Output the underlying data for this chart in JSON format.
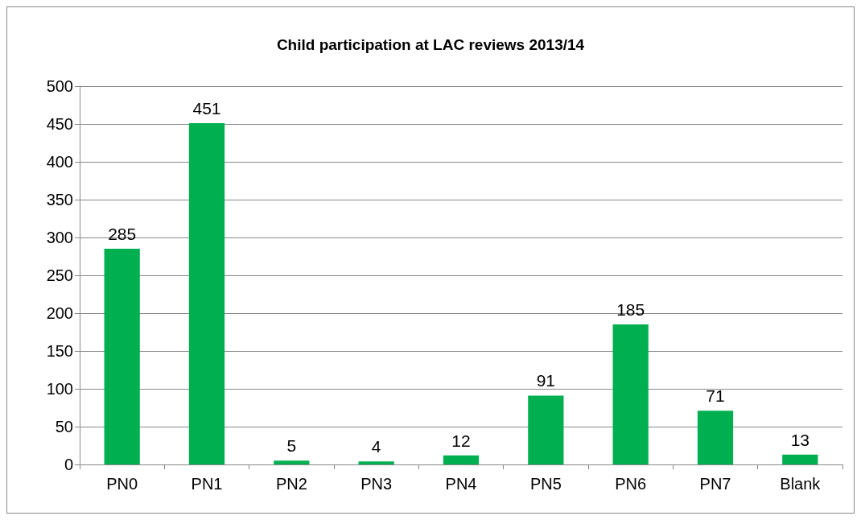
{
  "chart_data": {
    "type": "bar",
    "title": "Child participation at LAC reviews 2013/14",
    "categories": [
      "PN0",
      "PN1",
      "PN2",
      "PN3",
      "PN4",
      "PN5",
      "PN6",
      "PN7",
      "Blank"
    ],
    "values": [
      285,
      451,
      5,
      4,
      12,
      91,
      185,
      71,
      13
    ],
    "color": "#00b050",
    "ylim": [
      0,
      500
    ],
    "yticks": [
      0,
      50,
      100,
      150,
      200,
      250,
      300,
      350,
      400,
      450,
      500
    ],
    "grid": "y",
    "data_labels": true
  }
}
